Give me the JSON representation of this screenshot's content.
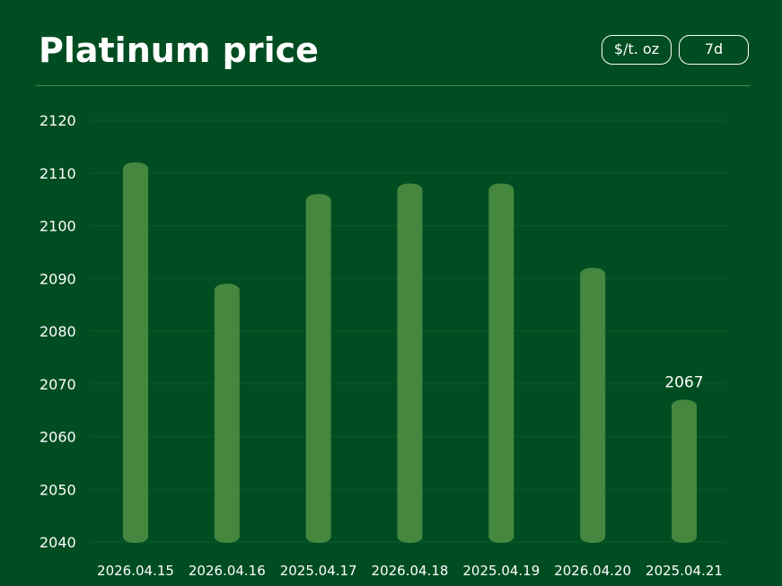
{
  "header": {
    "title": "Platinum price",
    "unit_label": "$/t. oz",
    "range_label": "7d"
  },
  "colors": {
    "background": "#004d22",
    "bar": "#45873f",
    "grid": "#0b5a2b",
    "text": "#ffffff"
  },
  "chart_data": {
    "type": "bar",
    "title": "Platinum price",
    "xlabel": "",
    "ylabel": "",
    "categories": [
      "2026.04.15",
      "2026.04.16",
      "2025.04.17",
      "2026.04.18",
      "2025.04.19",
      "2026.04.20",
      "2025.04.21"
    ],
    "values": [
      2112,
      2089,
      2106,
      2108,
      2108,
      2092,
      2067
    ],
    "ylim": [
      2040,
      2120
    ],
    "yticks": [
      2120,
      2110,
      2100,
      2090,
      2080,
      2070,
      2060,
      2050,
      2040
    ],
    "data_labels": [
      {
        "index": 6,
        "text": "2067"
      }
    ],
    "grid": true,
    "legend": "none"
  }
}
